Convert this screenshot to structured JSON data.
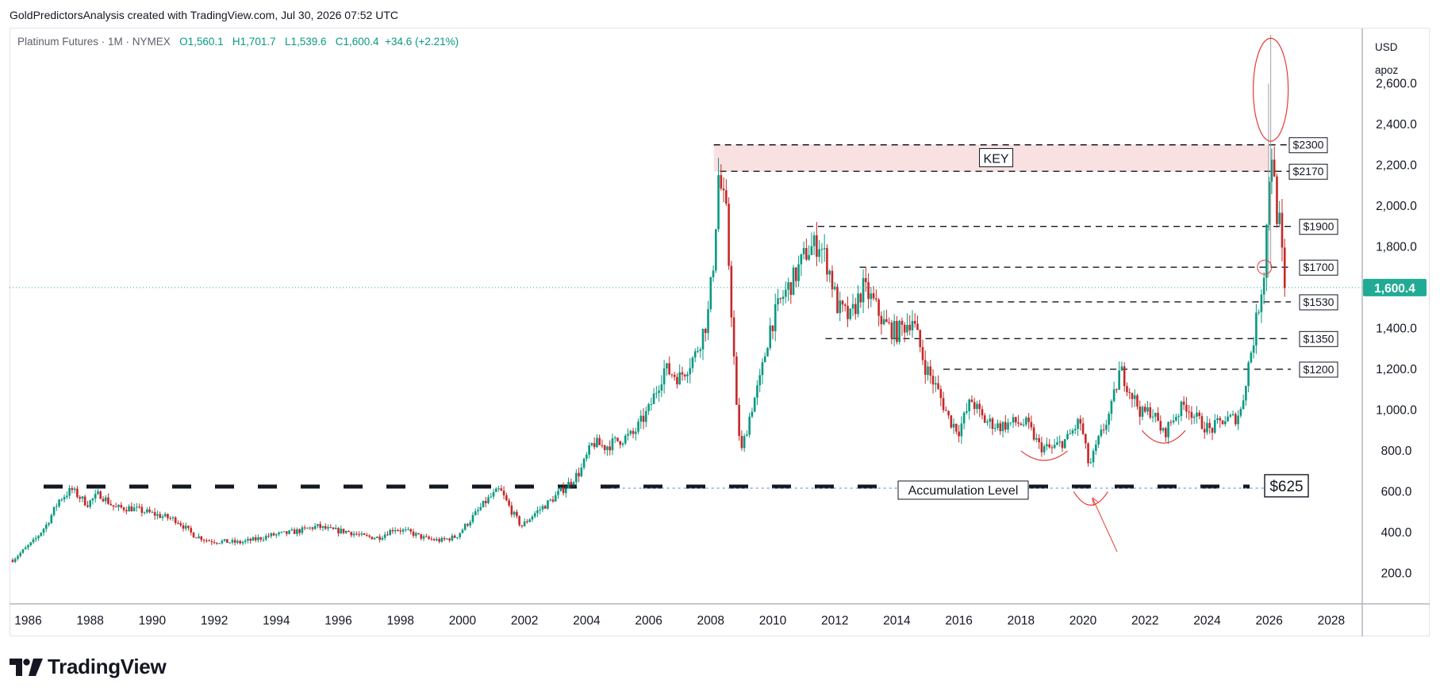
{
  "header": {
    "attribution": "GoldPredictorsAnalysis created with TradingView.com, Jul 30, 2026 07:52 UTC"
  },
  "legend": {
    "symbol": "Platinum Futures · 1M · NYMEX",
    "open": "O1,560.1",
    "high": "H1,701.7",
    "low": "L1,539.6",
    "close": "C1,600.4",
    "change": "+34.6 (+2.21%)"
  },
  "price_scale": {
    "currency": "USD",
    "mode": "apoz",
    "last_price_label": "1,600.4"
  },
  "brand": {
    "name": "TradingView"
  },
  "colors": {
    "up": "#089981",
    "down": "#c62828",
    "last_price": "#22ab94",
    "key_zone": "#f8dcdc",
    "annotation_red": "#e53935",
    "accum_blue": "#5b7fd6"
  },
  "chart_data": {
    "type": "candlestick",
    "title": "Platinum Futures · 1M · NYMEX",
    "x_ticks": [
      "1986",
      "1988",
      "1990",
      "1992",
      "1994",
      "1996",
      "1998",
      "2000",
      "2002",
      "2004",
      "2006",
      "2008",
      "2010",
      "2012",
      "2014",
      "2016",
      "2018",
      "2020",
      "2022",
      "2024",
      "2026",
      "2028"
    ],
    "y_ticks": [
      "200.0",
      "400.0",
      "600.0",
      "800.0",
      "1,000.0",
      "1,200.0",
      "1,400.0",
      "1,600.0",
      "1,800.0",
      "2,000.0",
      "2,200.0",
      "2,400.0",
      "2,600.0"
    ],
    "ylim": [
      50,
      2870
    ],
    "xlim": [
      1985.4,
      2029.0
    ],
    "last_price": 1600.4,
    "grid": false,
    "price_path": [
      [
        1985.5,
        265
      ],
      [
        1986.2,
        360
      ],
      [
        1986.6,
        440
      ],
      [
        1987.0,
        560
      ],
      [
        1987.4,
        610
      ],
      [
        1987.9,
        540
      ],
      [
        1988.3,
        590
      ],
      [
        1988.8,
        520
      ],
      [
        1989.3,
        520
      ],
      [
        1989.8,
        500
      ],
      [
        1990.3,
        480
      ],
      [
        1990.8,
        460
      ],
      [
        1991.3,
        390
      ],
      [
        1991.8,
        360
      ],
      [
        1992.3,
        355
      ],
      [
        1992.8,
        350
      ],
      [
        1993.3,
        365
      ],
      [
        1993.8,
        385
      ],
      [
        1994.3,
        395
      ],
      [
        1994.8,
        410
      ],
      [
        1995.3,
        430
      ],
      [
        1995.8,
        410
      ],
      [
        1996.3,
        405
      ],
      [
        1996.8,
        380
      ],
      [
        1997.3,
        375
      ],
      [
        1997.8,
        420
      ],
      [
        1998.3,
        400
      ],
      [
        1998.8,
        370
      ],
      [
        1999.3,
        360
      ],
      [
        1999.8,
        380
      ],
      [
        2000.3,
        470
      ],
      [
        2000.8,
        560
      ],
      [
        2001.2,
        610
      ],
      [
        2001.6,
        500
      ],
      [
        2001.9,
        430
      ],
      [
        2002.3,
        490
      ],
      [
        2002.8,
        550
      ],
      [
        2003.3,
        620
      ],
      [
        2003.8,
        700
      ],
      [
        2004.2,
        840
      ],
      [
        2004.6,
        820
      ],
      [
        2005.0,
        850
      ],
      [
        2005.5,
        880
      ],
      [
        2006.0,
        1000
      ],
      [
        2006.5,
        1200
      ],
      [
        2007.0,
        1160
      ],
      [
        2007.5,
        1270
      ],
      [
        2007.9,
        1450
      ],
      [
        2008.1,
        1750
      ],
      [
        2008.25,
        2150
      ],
      [
        2008.5,
        1950
      ],
      [
        2008.7,
        1400
      ],
      [
        2008.85,
        950
      ],
      [
        2009.0,
        800
      ],
      [
        2009.3,
        1000
      ],
      [
        2009.6,
        1150
      ],
      [
        2009.9,
        1400
      ],
      [
        2010.3,
        1550
      ],
      [
        2010.7,
        1650
      ],
      [
        2011.1,
        1780
      ],
      [
        2011.5,
        1820
      ],
      [
        2011.8,
        1700
      ],
      [
        2012.1,
        1500
      ],
      [
        2012.5,
        1450
      ],
      [
        2012.9,
        1600
      ],
      [
        2013.2,
        1540
      ],
      [
        2013.6,
        1420
      ],
      [
        2014.0,
        1380
      ],
      [
        2014.5,
        1450
      ],
      [
        2014.9,
        1220
      ],
      [
        2015.3,
        1100
      ],
      [
        2015.7,
        950
      ],
      [
        2016.0,
        900
      ],
      [
        2016.4,
        1050
      ],
      [
        2016.8,
        950
      ],
      [
        2017.3,
        920
      ],
      [
        2017.8,
        940
      ],
      [
        2018.2,
        930
      ],
      [
        2018.6,
        820
      ],
      [
        2019.0,
        810
      ],
      [
        2019.5,
        860
      ],
      [
        2019.9,
        950
      ],
      [
        2020.2,
        720
      ],
      [
        2020.5,
        850
      ],
      [
        2020.9,
        1000
      ],
      [
        2021.2,
        1200
      ],
      [
        2021.5,
        1100
      ],
      [
        2021.9,
        980
      ],
      [
        2022.2,
        1000
      ],
      [
        2022.6,
        880
      ],
      [
        2022.9,
        960
      ],
      [
        2023.3,
        1030
      ],
      [
        2023.7,
        950
      ],
      [
        2024.1,
        900
      ],
      [
        2024.5,
        950
      ],
      [
        2024.9,
        960
      ],
      [
        2025.1,
        1000
      ],
      [
        2025.3,
        1200
      ],
      [
        2025.5,
        1350
      ],
      [
        2025.7,
        1550
      ],
      [
        2025.85,
        1700
      ],
      [
        2026.0,
        2150
      ],
      [
        2026.1,
        2300
      ],
      [
        2026.2,
        2000
      ],
      [
        2026.35,
        1900
      ],
      [
        2026.5,
        1560
      ],
      [
        2026.58,
        1600.4
      ]
    ],
    "key_zone": {
      "low": 2170,
      "high": 2300,
      "label": "KEY"
    },
    "levels": [
      {
        "value": 2300,
        "label": "$2300",
        "x_start": 2008.1
      },
      {
        "value": 2170,
        "label": "$2170",
        "x_start": 2008.3
      },
      {
        "value": 1900,
        "label": "$1900",
        "x_start": 2011.1
      },
      {
        "value": 1700,
        "label": "$1700",
        "x_start": 2012.8
      },
      {
        "value": 1530,
        "label": "$1530",
        "x_start": 2014.0
      },
      {
        "value": 1350,
        "label": "$1350",
        "x_start": 2011.7
      },
      {
        "value": 1200,
        "label": "$1200",
        "x_start": 2015.5
      }
    ],
    "accumulation": {
      "value": 625,
      "label": "Accumulation Level",
      "tag": "$625"
    }
  }
}
